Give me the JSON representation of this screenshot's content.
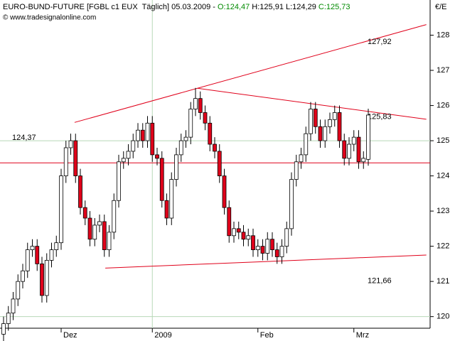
{
  "chart_data": {
    "type": "candlestick",
    "header": [
      "EURO-BUND-FUTURE [FGBL c1 EUX  Täglich] 05.03.2009 - ",
      "O:124,47",
      " H:125,91 L:124,29 ",
      "C:125,73"
    ],
    "subtitle": "© www.tradesignalonline.com",
    "unit_label": "€/E",
    "categories": [
      null,
      null,
      null,
      null,
      null,
      null,
      null,
      null,
      null,
      null,
      null,
      null,
      "Dez",
      null,
      null,
      null,
      null,
      null,
      null,
      null,
      null,
      null,
      null,
      null,
      null,
      null,
      null,
      null,
      null,
      null,
      null,
      "2009",
      null,
      null,
      null,
      null,
      null,
      null,
      null,
      null,
      null,
      null,
      null,
      null,
      null,
      null,
      null,
      null,
      null,
      null,
      null,
      null,
      null,
      "Feb",
      null,
      null,
      null,
      null,
      null,
      null,
      null,
      null,
      null,
      null,
      null,
      null,
      null,
      null,
      null,
      null,
      null,
      null,
      null,
      "Mrz",
      null,
      null,
      null
    ],
    "open": [
      119.5,
      119.8,
      120.1,
      120.5,
      121.0,
      121.3,
      121.9,
      122.0,
      121.5,
      120.6,
      121.6,
      121.9,
      122.1,
      124.0,
      124.8,
      125.0,
      124.0,
      123.1,
      122.8,
      122.2,
      122.6,
      122.7,
      121.9,
      122.4,
      123.3,
      124.4,
      124.5,
      124.7,
      125.0,
      125.3,
      125.0,
      125.5,
      124.6,
      124.5,
      123.3,
      122.8,
      123.9,
      124.6,
      125.0,
      125.1,
      125.9,
      126.2,
      125.8,
      125.5,
      124.9,
      124.7,
      124.0,
      123.1,
      122.3,
      122.5,
      122.4,
      122.2,
      122.3,
      121.9,
      122.0,
      121.8,
      122.2,
      121.9,
      121.7,
      122.0,
      122.5,
      123.9,
      124.4,
      124.6,
      125.2,
      125.9,
      125.4,
      125.0,
      125.4,
      125.6,
      125.8,
      125.0,
      124.5,
      124.9,
      125.1,
      124.4,
      124.47
    ],
    "high": [
      120.0,
      120.3,
      120.7,
      121.2,
      121.5,
      122.1,
      122.2,
      122.2,
      121.7,
      121.8,
      122.1,
      122.3,
      124.2,
      125.0,
      125.2,
      125.2,
      124.2,
      123.3,
      123.0,
      122.8,
      122.9,
      122.9,
      122.6,
      123.5,
      124.6,
      124.7,
      124.9,
      125.2,
      125.5,
      125.5,
      125.7,
      125.7,
      124.8,
      124.7,
      123.5,
      124.1,
      124.8,
      125.2,
      125.3,
      126.1,
      126.5,
      126.4,
      126.0,
      125.7,
      125.1,
      124.9,
      124.2,
      123.3,
      122.7,
      122.7,
      122.6,
      122.5,
      122.5,
      122.2,
      122.2,
      122.4,
      122.4,
      122.1,
      122.2,
      122.7,
      124.1,
      124.6,
      124.8,
      125.4,
      126.1,
      126.1,
      125.6,
      125.6,
      125.8,
      126.0,
      126.0,
      125.2,
      125.1,
      125.3,
      125.3,
      124.7,
      125.91
    ],
    "low": [
      119.3,
      119.6,
      119.9,
      120.3,
      120.8,
      121.1,
      121.7,
      121.3,
      120.4,
      120.4,
      121.4,
      121.7,
      121.9,
      123.8,
      124.6,
      123.8,
      122.9,
      122.6,
      122.0,
      122.0,
      122.4,
      121.7,
      121.7,
      122.2,
      123.1,
      124.2,
      124.3,
      124.5,
      124.8,
      124.8,
      124.8,
      124.4,
      124.3,
      123.1,
      122.6,
      122.6,
      123.7,
      124.4,
      124.8,
      124.9,
      125.7,
      125.6,
      125.3,
      124.7,
      124.5,
      123.8,
      122.9,
      122.1,
      122.1,
      122.2,
      122.0,
      122.0,
      121.7,
      121.7,
      121.6,
      121.6,
      121.7,
      121.5,
      121.5,
      121.8,
      122.3,
      123.7,
      124.2,
      124.4,
      125.0,
      125.2,
      124.8,
      124.8,
      125.2,
      125.4,
      124.8,
      124.3,
      124.3,
      124.7,
      124.2,
      124.2,
      124.29
    ],
    "close": [
      119.8,
      120.1,
      120.5,
      121.0,
      121.3,
      121.9,
      122.0,
      121.5,
      120.6,
      121.6,
      121.9,
      122.1,
      124.0,
      124.8,
      125.0,
      124.0,
      123.1,
      122.8,
      122.2,
      122.6,
      122.7,
      121.9,
      122.4,
      123.3,
      124.4,
      124.5,
      124.7,
      125.0,
      125.3,
      125.0,
      125.5,
      124.6,
      124.5,
      123.3,
      122.8,
      123.9,
      124.6,
      125.0,
      125.1,
      125.9,
      126.2,
      125.8,
      125.5,
      124.9,
      124.7,
      124.0,
      123.1,
      122.3,
      122.5,
      122.4,
      122.2,
      122.3,
      121.9,
      122.0,
      121.8,
      122.2,
      121.9,
      121.7,
      122.0,
      122.5,
      123.9,
      124.4,
      124.6,
      125.2,
      125.9,
      125.4,
      125.0,
      125.4,
      125.6,
      125.8,
      125.0,
      124.5,
      124.9,
      125.1,
      124.4,
      124.5,
      125.73
    ],
    "up_color": "#ffffff",
    "down_color": "#e0001a",
    "ylim": [
      119.67,
      129.0
    ],
    "yticks": [
      120,
      121,
      122,
      123,
      124,
      125,
      126,
      127,
      128
    ],
    "ygrid": [
      120,
      125
    ],
    "xgrid": [
      31
    ],
    "line_color": "#e0001a",
    "trendlines": [
      {
        "label": "127,92",
        "points": [
          [
            14.8,
            125.52
          ],
          [
            88.1,
            128.3
          ]
        ]
      },
      {
        "label": "125,83",
        "points": [
          [
            40.4,
            126.49
          ],
          [
            88.1,
            125.61
          ]
        ]
      },
      {
        "label": "121,66",
        "points": [
          [
            21.2,
            121.38
          ],
          [
            88.1,
            121.75
          ]
        ]
      }
    ],
    "hlines": [
      {
        "value": 124.37,
        "label": "124,37"
      }
    ]
  }
}
